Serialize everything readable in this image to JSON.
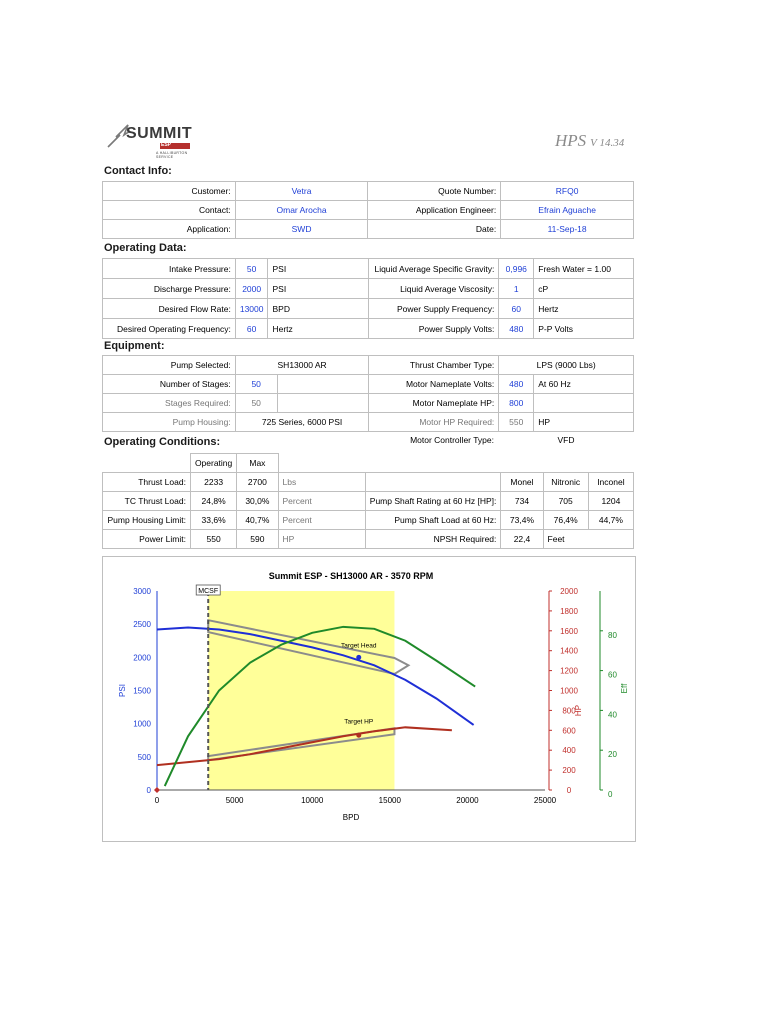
{
  "header": {
    "brand": "SUMMIT",
    "brand_bar": "ESP",
    "brand_sub": "A HALLIBURTON SERVICE",
    "app_name": "HPS",
    "version": "V 14.34"
  },
  "contact": {
    "title": "Contact Info:",
    "customer_label": "Customer:",
    "customer": "Vetra",
    "quote_label": "Quote Number:",
    "quote": "RFQ0",
    "contact_label": "Contact:",
    "contact": "Omar Arocha",
    "engineer_label": "Application Engineer:",
    "engineer": "Efrain Aguache",
    "application_label": "Application:",
    "application": "SWD",
    "date_label": "Date:",
    "date": "11-Sep-18"
  },
  "operating": {
    "title": "Operating Data:",
    "rows": [
      {
        "label": "Intake Pressure:",
        "value": "50",
        "unit": "PSI",
        "label2": "Liquid Average Specific Gravity:",
        "value2": "0,996",
        "unit2": "Fresh Water = 1.00"
      },
      {
        "label": "Discharge Pressure:",
        "value": "2000",
        "unit": "PSI",
        "label2": "Liquid Average Viscosity:",
        "value2": "1",
        "unit2": "cP"
      },
      {
        "label": "Desired Flow Rate:",
        "value": "13000",
        "unit": "BPD",
        "label2": "Power Supply Frequency:",
        "value2": "60",
        "unit2": "Hertz"
      },
      {
        "label": "Desired Operating Frequency:",
        "value": "60",
        "unit": "Hertz",
        "label2": "Power Supply Volts:",
        "value2": "480",
        "unit2": "P-P Volts"
      }
    ]
  },
  "equipment": {
    "title": "Equipment:",
    "pump_selected_label": "Pump Selected:",
    "pump_selected": "SH13000 AR",
    "thrust_chamber_label": "Thrust Chamber Type:",
    "thrust_chamber": "LPS (9000 Lbs)",
    "stages_label": "Number of Stages:",
    "stages": "50",
    "motor_volts_label": "Motor Nameplate Volts:",
    "motor_volts": "480",
    "motor_volts_unit": "At 60 Hz",
    "stages_req_label": "Stages Required:",
    "stages_req": "50",
    "motor_hp_label": "Motor Nameplate HP:",
    "motor_hp": "800",
    "housing_label": "Pump Housing:",
    "housing": "725 Series, 6000 PSI",
    "hp_req_label": "Motor HP Required:",
    "hp_req": "550",
    "hp_req_unit": "HP",
    "controller_label": "Motor Controller Type:",
    "controller": "VFD"
  },
  "conditions": {
    "title": "Operating Conditions:",
    "col_operating": "Operating",
    "col_max": "Max",
    "col_monel": "Monel",
    "col_nitronic": "Nitronic",
    "col_inconel": "Inconel",
    "rows": [
      {
        "label": "Thrust Load:",
        "op": "2233",
        "max": "2700",
        "unit": "Lbs"
      },
      {
        "label": "TC Thrust Load:",
        "op": "24,8%",
        "max": "30,0%",
        "unit": "Percent",
        "label2": "Pump Shaft Rating at 60 Hz [HP]:",
        "a": "734",
        "b": "705",
        "c": "1204"
      },
      {
        "label": "Pump Housing Limit:",
        "op": "33,6%",
        "max": "40,7%",
        "unit": "Percent",
        "label2": "Pump Shaft Load at 60 Hz:",
        "a": "73,4%",
        "b": "76,4%",
        "c": "44,7%"
      },
      {
        "label": "Power Limit:",
        "op": "550",
        "max": "590",
        "unit": "HP",
        "label2": "NPSH Required:",
        "a": "22,4",
        "b": "Feet"
      }
    ]
  },
  "chart_data": {
    "type": "line",
    "title": "Summit ESP - SH13000 AR - 3570 RPM",
    "xlabel": "BPD",
    "xlim": [
      0,
      25000
    ],
    "xticks": [
      "0",
      "5000",
      "10000",
      "15000",
      "20000",
      "25000"
    ],
    "y_left": {
      "label": "PSI",
      "lim": [
        0,
        3000
      ],
      "ticks": [
        "0",
        "500",
        "1000",
        "1500",
        "2000",
        "2500",
        "3000"
      ],
      "color": "#1f3fd6"
    },
    "y_hp": {
      "label": "HP",
      "lim": [
        0,
        2000
      ],
      "ticks": [
        "0",
        "200",
        "400",
        "600",
        "800",
        "1000",
        "1200",
        "1400",
        "1600",
        "1800",
        "2000"
      ],
      "color": "#c0302d"
    },
    "y_eff": {
      "label": "Eff",
      "lim": [
        0,
        100
      ],
      "ticks": [
        "0",
        "20",
        "40",
        "60",
        "80"
      ],
      "color": "#1f8a2a"
    },
    "mcsf_label": "MCSF",
    "mcsf_x": 3300,
    "operating_range": [
      3300,
      15300
    ],
    "target_head_label": "Target Head",
    "target_hp_label": "Target HP",
    "target_head": {
      "x": 13000,
      "y": 2000
    },
    "target_hp": {
      "x": 13000,
      "y": 550
    },
    "series": [
      {
        "axis": "left",
        "color": "#1f2fd6",
        "x": [
          0,
          2000,
          4000,
          6000,
          8000,
          10000,
          12000,
          14000,
          16000,
          18000,
          20400
        ],
        "y": [
          2420,
          2450,
          2420,
          2350,
          2250,
          2150,
          2030,
          1880,
          1660,
          1380,
          980
        ]
      },
      {
        "axis": "hp",
        "color": "#b03020",
        "x": [
          0,
          2000,
          4000,
          6000,
          8000,
          10000,
          12000,
          14000,
          16000,
          19000
        ],
        "y": [
          250,
          280,
          310,
          360,
          420,
          480,
          540,
          590,
          630,
          600
        ]
      },
      {
        "axis": "eff",
        "color": "#1f8a2a",
        "x": [
          500,
          2000,
          4000,
          6000,
          8000,
          10000,
          12000,
          14000,
          16000,
          18000,
          20500
        ],
        "y": [
          2,
          27,
          50,
          64,
          73,
          79,
          82,
          81,
          75,
          65,
          52
        ]
      }
    ],
    "envelope_head": {
      "x": [
        3300,
        15300,
        16200,
        15300,
        3300
      ],
      "y": [
        2560,
        1990,
        1880,
        1750,
        2380
      ]
    },
    "envelope_hp": {
      "x": [
        3300,
        15300,
        15300,
        3300
      ],
      "y": [
        340,
        620,
        560,
        300
      ]
    }
  }
}
